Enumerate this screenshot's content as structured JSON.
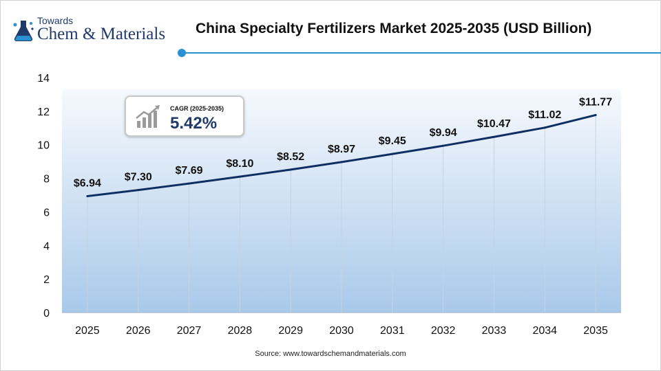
{
  "logo": {
    "line1": "Towards",
    "line2": "Chem & Materials"
  },
  "title": "China Specialty Fertilizers Market 2025-2035 (USD Billion)",
  "cagr": {
    "label": "CAGR (2025-2035)",
    "value": "5.42%"
  },
  "source": "Source: www.towardschemandmaterials.com",
  "colors": {
    "line": "#0f2f63",
    "accent": "#2b8fd1",
    "brand": "#1f3a6b",
    "area_top": "#f6f9fd",
    "area_bottom": "#a9c9ea"
  },
  "chart_data": {
    "type": "area",
    "title": "China Specialty Fertilizers Market 2025-2035 (USD Billion)",
    "categories": [
      "2025",
      "2026",
      "2027",
      "2028",
      "2029",
      "2030",
      "2031",
      "2032",
      "2033",
      "2034",
      "2035"
    ],
    "series": [
      {
        "values": [
          6.94,
          7.3,
          7.69,
          8.1,
          8.52,
          8.97,
          9.45,
          9.94,
          10.47,
          11.02,
          11.77
        ],
        "labels": [
          "$6.94",
          "$7.30",
          "$7.69",
          "$8.10",
          "$8.52",
          "$8.97",
          "$9.45",
          "$9.94",
          "$10.47",
          "$11.02",
          "$11.77"
        ]
      }
    ],
    "ylim": [
      0,
      14
    ],
    "yticks": [
      "0",
      "2",
      "4",
      "6",
      "8",
      "10",
      "12",
      "14"
    ],
    "xlabel": "",
    "ylabel": "",
    "grid": "vertical",
    "legend": "none"
  }
}
